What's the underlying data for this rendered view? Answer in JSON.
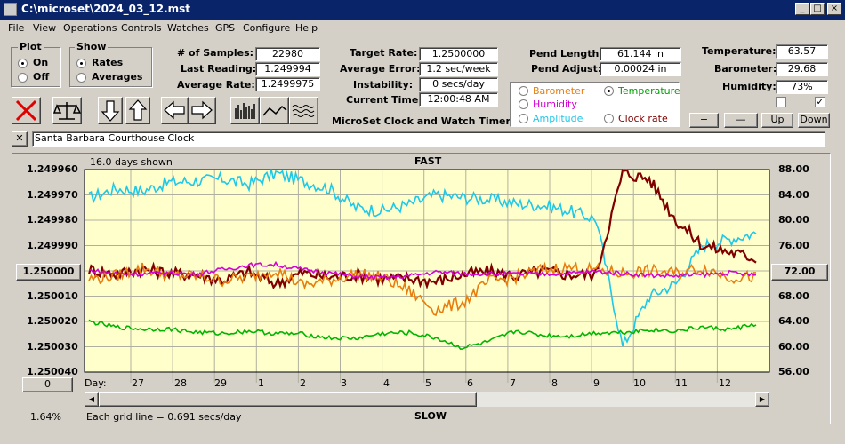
{
  "window": {
    "title": "C:\\microset\\2024_03_12.mst"
  },
  "menu": [
    "File",
    "View",
    "Operations",
    "Controls",
    "Watches",
    "GPS",
    "Configure",
    "Help"
  ],
  "plot_group": {
    "title": "Plot",
    "on": "On",
    "off": "Off",
    "selected": "On"
  },
  "show_group": {
    "title": "Show",
    "rates": "Rates",
    "averages": "Averages",
    "selected": "Rates"
  },
  "stats": {
    "samples_label": "# of Samples:",
    "samples": "22980",
    "last_label": "Last Reading:",
    "last": "1.249994",
    "avg_label": "Average Rate:",
    "avg": "1.2499975",
    "target_label": "Target Rate:",
    "target": "1.2500000",
    "avgerr_label": "Average Error:",
    "avgerr": "1.2 sec/week",
    "instab_label": "Instability:",
    "instab": "0 secs/day",
    "time_label": "Current Time:",
    "time": "12:00:48 AM",
    "pendlen_label": "Pend Length:",
    "pendlen": "61.144 in",
    "pendadj_label": "Pend Adjust:",
    "pendadj": "0.00024 in",
    "temp_label": "Temperature:",
    "temp": "63.57",
    "baro_label": "Barometer:",
    "baro": "29.68",
    "hum_label": "Humidity:",
    "hum": "73%"
  },
  "app_caption": "MicroSet Clock and Watch Timer",
  "overlay": {
    "barometer": "Barometer",
    "humidity": "Humidity",
    "amplitude": "Amplitude",
    "temperature": "Temperature",
    "clock_rate": "Clock rate",
    "selected": "Temperature",
    "colors": {
      "barometer": "#e87d0d",
      "humidity": "#d400d4",
      "amplitude": "#1ec8e8",
      "temperature": "#00a000",
      "clock_rate": "#800000"
    }
  },
  "right_buttons": {
    "plus": "+",
    "minus": "—",
    "up": "Up",
    "down": "Down"
  },
  "clock_name": "Santa Barbara Courthouse Clock",
  "chart_header": {
    "days_shown": "16.0 days shown",
    "fast": "FAST",
    "slow": "SLOW",
    "center_left": "1.250000",
    "center_right": "72.00",
    "zero_btn": "0",
    "percent": "1.64%",
    "grid_note": "Each grid line = 0.691 secs/day",
    "day_label": "Day:"
  },
  "chart_data": {
    "type": "line",
    "x_labels": [
      "27",
      "28",
      "29",
      "1",
      "2",
      "3",
      "4",
      "5",
      "6",
      "7",
      "8",
      "9",
      "10",
      "11",
      "12"
    ],
    "left_axis": [
      "1.249960",
      "1.249970",
      "1.249980",
      "1.249990",
      "1.250000",
      "1.250010",
      "1.250020",
      "1.250030",
      "1.250040"
    ],
    "right_axis": [
      "88.00",
      "84.00",
      "80.00",
      "76.00",
      "72.00",
      "68.00",
      "64.00",
      "60.00",
      "56.00"
    ],
    "ylim_left": [
      1.24996,
      1.25004
    ],
    "ylim_right": [
      56,
      88
    ],
    "grid": true,
    "series": [
      {
        "color": "#1ec8e8",
        "values": [
          83.5,
          85,
          84.6,
          86,
          86.2,
          86.5,
          85.7,
          87.4,
          86.2,
          85,
          82,
          81.5,
          82.5,
          84,
          83.6,
          83.3,
          82.6,
          82.4,
          81.5,
          80.2,
          60,
          68,
          70,
          76,
          77,
          78
        ]
      },
      {
        "color": "#800000",
        "values": [
          72.2,
          71.5,
          72.3,
          71.6,
          71.4,
          70.5,
          71.8,
          70,
          71.7,
          71,
          71.4,
          70.7,
          70.8,
          70.3,
          71.4,
          71.9,
          71.2,
          72,
          71.4,
          71.5,
          87.5,
          86.5,
          80,
          76,
          75,
          74
        ]
      },
      {
        "color": "#e87d0d",
        "values": [
          70.7,
          71.2,
          72.5,
          71.3,
          71.2,
          70.5,
          71,
          72.2,
          69.7,
          70.5,
          71.5,
          71,
          68.8,
          65.8,
          67,
          70.3,
          71,
          72.2,
          72.5,
          72.1,
          71.6,
          72,
          71.6,
          72.5,
          71,
          71
        ]
      },
      {
        "color": "#d400d4",
        "values": [
          72.1,
          71.6,
          71.5,
          71.7,
          71.5,
          72.2,
          72.9,
          73,
          72.2,
          71.7,
          71.1,
          70.9,
          71.2,
          71.8,
          71.6,
          71.5,
          71.5,
          71.5,
          71.6,
          71.9,
          71.6,
          71.3,
          71.2,
          71.4,
          71.7,
          71.3
        ]
      },
      {
        "color": "#00b400",
        "values": [
          64,
          63.1,
          62.8,
          62.8,
          62.3,
          62.1,
          62.5,
          62.1,
          62,
          61.4,
          61.3,
          62.1,
          62.2,
          61.4,
          59.8,
          60.8,
          62.5,
          61.8,
          61.7,
          62.2,
          62.3,
          62.7,
          62.5,
          63.1,
          62.7,
          63.6
        ]
      }
    ]
  }
}
